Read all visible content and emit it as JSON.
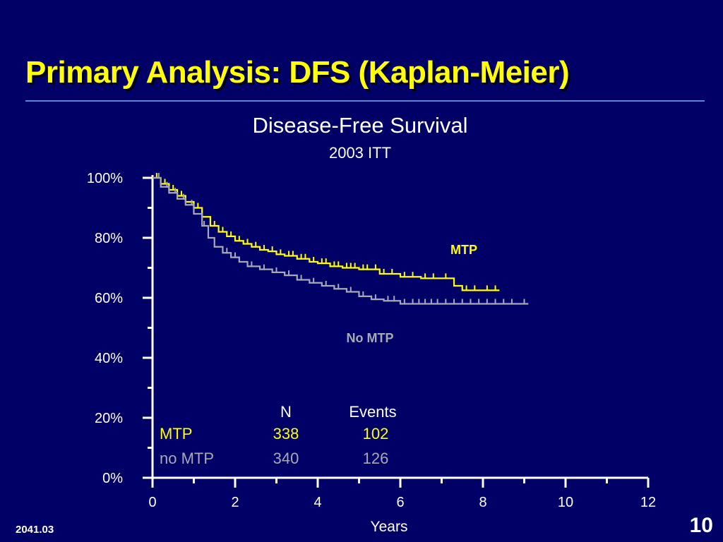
{
  "slide": {
    "title": "Primary Analysis: DFS (Kaplan-Meier)",
    "footer_code": "2041.03",
    "page_number": "10"
  },
  "colors": {
    "background": "#000066",
    "title": "#ffff00",
    "rule": "#5a86d6",
    "mtp": "#ffff00",
    "no_mtp": "#a8a8b8",
    "text": "#ffffff"
  },
  "chart_data": {
    "type": "line",
    "subtype": "kaplan-meier step curve with censor ticks",
    "title": "Disease-Free Survival",
    "subtitle": "2003 ITT",
    "xlabel": "Years",
    "ylabel": "",
    "xlim": [
      0,
      12
    ],
    "ylim": [
      0,
      100
    ],
    "x_ticks": [
      0,
      2,
      4,
      6,
      8,
      10,
      12
    ],
    "x_tick_labels": [
      "0",
      "2",
      "4",
      "6",
      "8",
      "10",
      "12"
    ],
    "y_ticks": [
      0,
      20,
      40,
      60,
      80,
      100
    ],
    "y_tick_labels": [
      "0%",
      "20%",
      "40%",
      "60%",
      "80%",
      "100%"
    ],
    "grid": false,
    "series": [
      {
        "name": "MTP",
        "color": "#ffff00",
        "x": [
          0,
          0.2,
          0.4,
          0.6,
          0.8,
          1.0,
          1.2,
          1.4,
          1.6,
          1.8,
          2.0,
          2.2,
          2.4,
          2.6,
          2.8,
          3.0,
          3.2,
          3.5,
          3.8,
          4.0,
          4.3,
          4.6,
          5.0,
          5.3,
          5.5,
          6.0,
          6.5,
          7.0,
          7.3,
          7.5,
          8.0,
          8.4
        ],
        "y": [
          100,
          98,
          96,
          94,
          92,
          90,
          87,
          84,
          82,
          80.5,
          79,
          78,
          77,
          76,
          75.5,
          74.5,
          74,
          73,
          72,
          71.5,
          70.5,
          70,
          69.5,
          69.5,
          68,
          67,
          66.5,
          66.5,
          64,
          62.5,
          62.5,
          62.5
        ],
        "censor_x": [
          0.1,
          0.3,
          0.5,
          0.7,
          1.1,
          1.5,
          1.7,
          1.9,
          2.1,
          2.3,
          2.5,
          2.7,
          2.9,
          3.1,
          3.3,
          3.4,
          3.6,
          3.7,
          3.9,
          4.1,
          4.2,
          4.4,
          4.5,
          4.7,
          4.8,
          4.9,
          5.1,
          5.2,
          5.4,
          5.6,
          5.8,
          6.1,
          6.3,
          6.6,
          6.8,
          7.1,
          7.6,
          7.8,
          8.1,
          8.3
        ]
      },
      {
        "name": "No MTP",
        "color": "#a8a8b8",
        "x": [
          0,
          0.2,
          0.4,
          0.6,
          0.8,
          1.0,
          1.2,
          1.35,
          1.5,
          1.7,
          1.9,
          2.1,
          2.3,
          2.6,
          2.9,
          3.2,
          3.5,
          3.8,
          4.1,
          4.4,
          4.7,
          5.0,
          5.3,
          5.6,
          6.0,
          7.0,
          8.0,
          9.1
        ],
        "y": [
          100,
          97,
          95,
          93,
          91,
          88,
          84,
          80,
          77,
          75,
          73.5,
          72,
          70.5,
          69.5,
          68.5,
          67.5,
          66,
          65,
          64,
          63,
          62,
          60.5,
          59.5,
          59,
          58,
          58,
          58,
          58
        ],
        "censor_x": [
          0.15,
          0.35,
          0.55,
          0.75,
          0.95,
          1.25,
          1.8,
          2.0,
          2.4,
          2.7,
          3.0,
          3.3,
          3.6,
          3.9,
          4.2,
          4.5,
          4.8,
          5.1,
          5.4,
          5.7,
          5.85,
          6.1,
          6.3,
          6.45,
          6.6,
          6.75,
          6.9,
          7.1,
          7.3,
          7.5,
          7.7,
          7.9,
          8.1,
          8.3,
          8.5,
          8.7,
          9.0
        ]
      }
    ],
    "annotations": [
      {
        "text": "MTP",
        "color": "#ffff00",
        "bold": true
      },
      {
        "text": "No MTP",
        "color": "#a8a8b8",
        "bold": true
      }
    ],
    "table": {
      "headers": [
        "",
        "N",
        "Events"
      ],
      "rows": [
        {
          "label": "MTP",
          "n": "338",
          "events": "102",
          "color": "#ffff00"
        },
        {
          "label": "no MTP",
          "n": "340",
          "events": "126",
          "color": "#a8a8b8"
        }
      ]
    }
  }
}
